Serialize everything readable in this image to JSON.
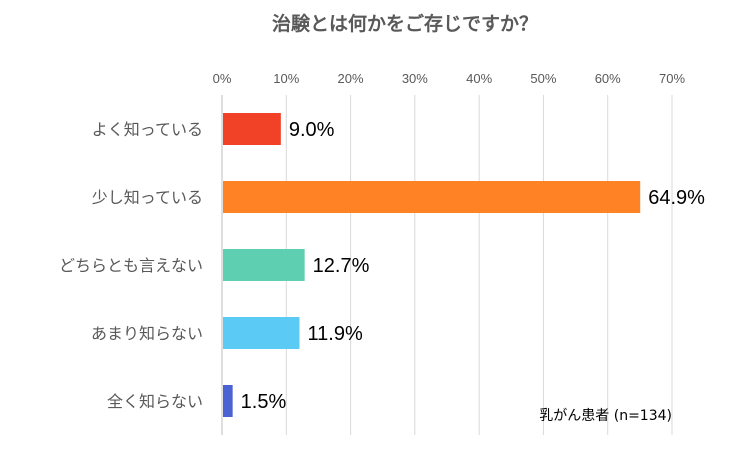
{
  "chart_data": {
    "type": "bar",
    "orientation": "horizontal",
    "title": "治験とは何かをご存じですか？",
    "categories": [
      "よく知っている",
      "少し知っている",
      "どちらとも言えない",
      "あまり知らない",
      "全く知らない"
    ],
    "values": [
      9.0,
      64.9,
      12.7,
      11.9,
      1.5
    ],
    "value_labels": [
      "9.0%",
      "64.9%",
      "12.7%",
      "11.9%",
      "1.5%"
    ],
    "colors": [
      "#F14127",
      "#FF8224",
      "#5ECFB0",
      "#5BCBF5",
      "#4A62D2"
    ],
    "xlim": [
      0,
      70
    ],
    "ticks": [
      "0%",
      "10%",
      "20%",
      "30%",
      "40%",
      "50%",
      "60%",
      "70%"
    ],
    "tick_values": [
      0,
      10,
      20,
      30,
      40,
      50,
      60,
      70
    ],
    "axis_position": "top",
    "grid": true,
    "annotation": "乳がん患者 (n=134)"
  }
}
